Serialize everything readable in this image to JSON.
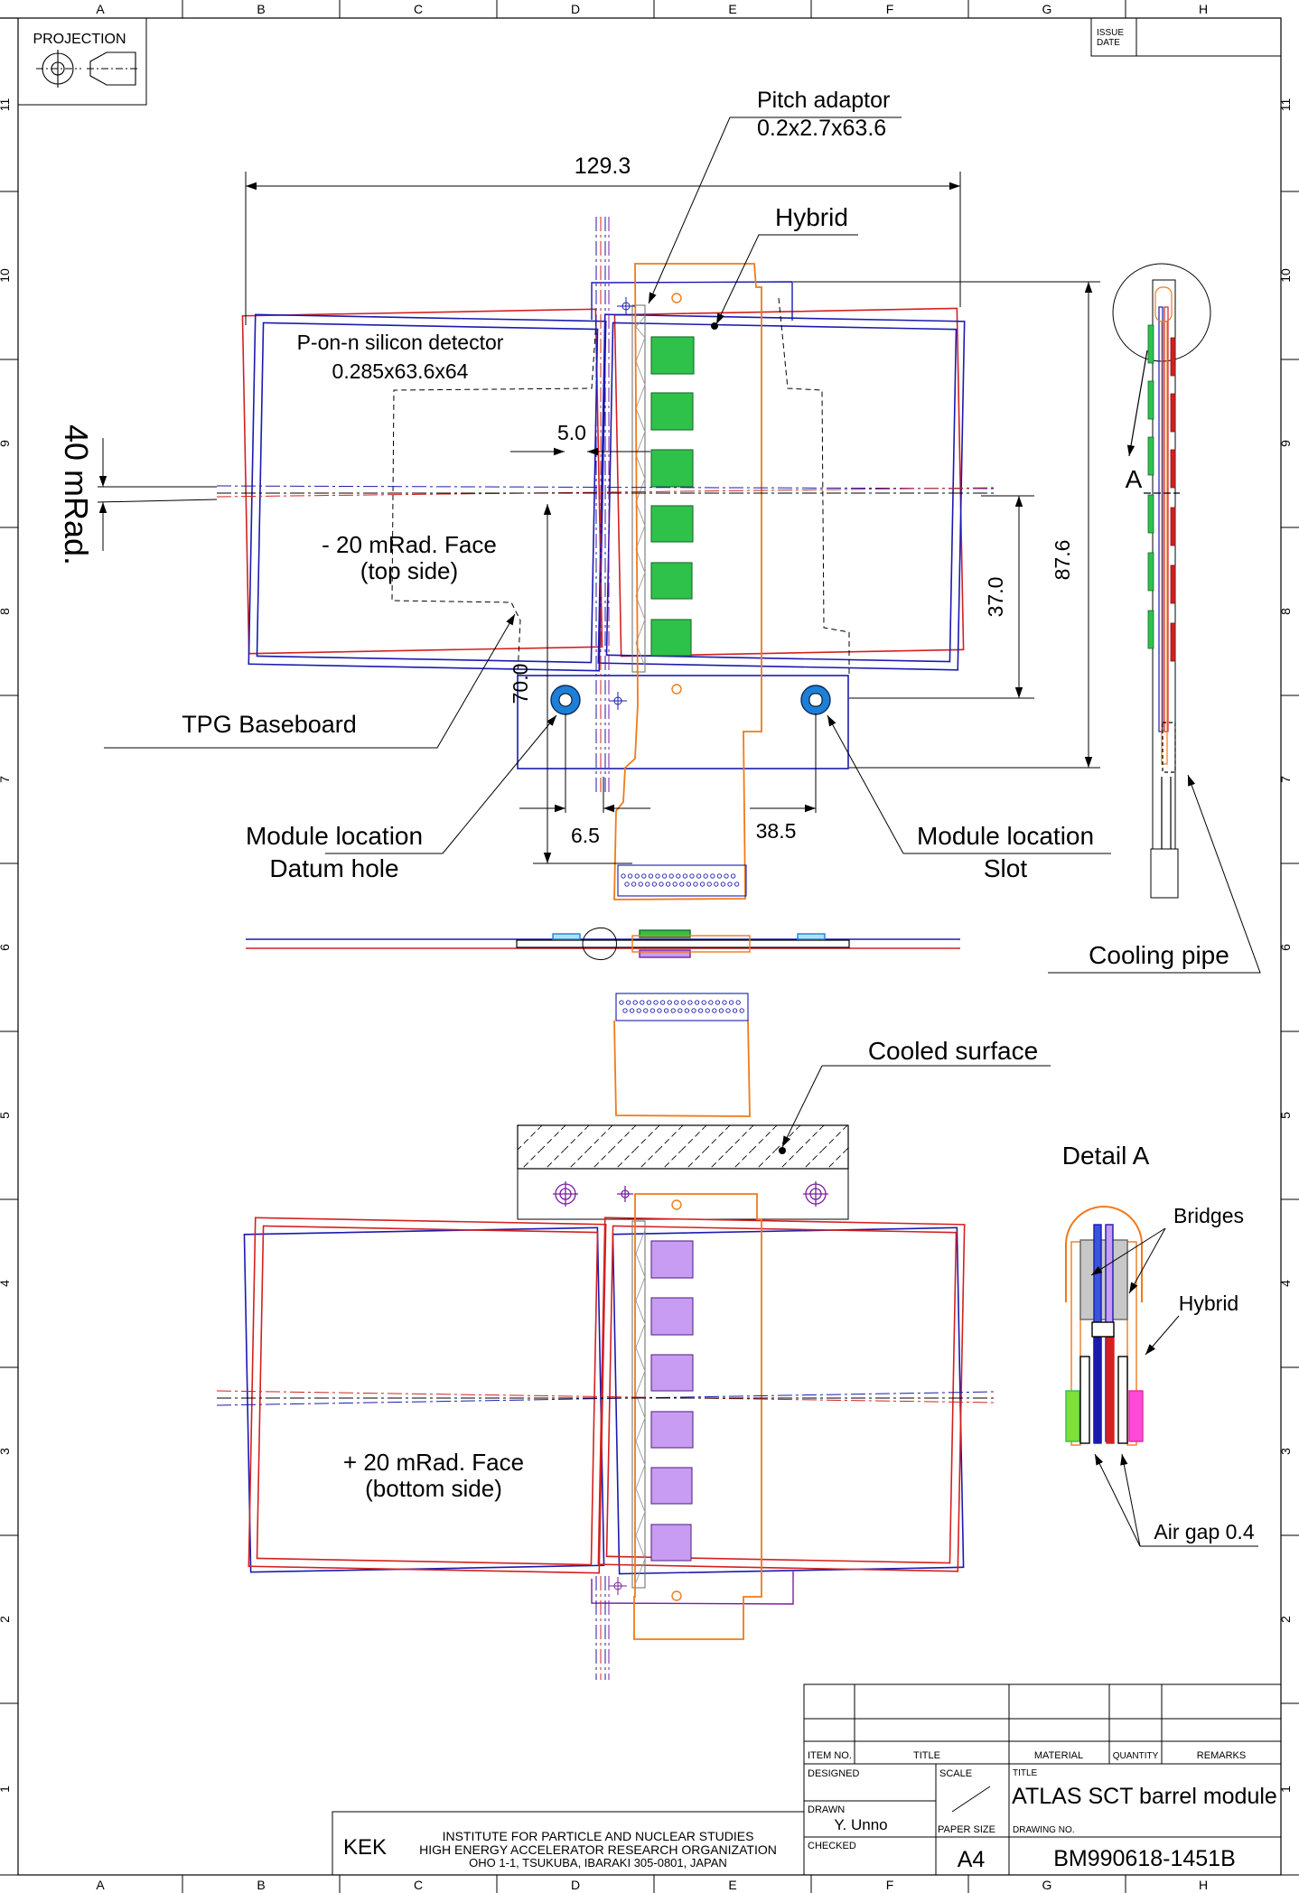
{
  "border": {
    "columns": [
      "A",
      "B",
      "C",
      "D",
      "E",
      "F",
      "G",
      "H"
    ],
    "rows": [
      "11",
      "10",
      "9",
      "8",
      "7",
      "6",
      "5",
      "4",
      "3",
      "2",
      "1"
    ]
  },
  "projection_label": "PROJECTION",
  "issue_label": "ISSUE",
  "date_label": "DATE",
  "labels": {
    "pitch_adaptor": "Pitch adaptor",
    "pitch_adaptor_dims": "0.2x2.7x63.6",
    "width_dim": "129.3",
    "hybrid": "Hybrid",
    "detector": "P-on-n silicon detector",
    "detector_dims": "0.285x63.6x64",
    "dim_5_0": "5.0",
    "angle": "40 mRad.",
    "top_face": "- 20 mRad. Face",
    "top_side": "(top side)",
    "dim_87_6": "87.6",
    "dim_37_0": "37.0",
    "dim_70_0": "70.0",
    "view_a": "A",
    "baseboard": "TPG Baseboard",
    "datum_1": "Module location",
    "datum_2": "Datum hole",
    "dim_6_5": "6.5",
    "dim_38_5": "38.5",
    "slot_1": "Module location",
    "slot_2": "Slot",
    "cooling_pipe": "Cooling pipe",
    "cooled_surface": "Cooled surface",
    "detail_a": "Detail A",
    "bridges": "Bridges",
    "hybrid_detail": "Hybrid",
    "bottom_face": "+ 20 mRad. Face",
    "bottom_side": "(bottom side)",
    "air_gap": "Air gap 0.4"
  },
  "title_block": {
    "item_no": "ITEM NO.",
    "title_col": "TITLE",
    "material": "MATERIAL",
    "quantity": "QUANTITY",
    "remarks": "REMARKS",
    "designed": "DESIGNED",
    "scale": "SCALE",
    "title_label": "TITLE",
    "title": "ATLAS SCT barrel module",
    "drawn": "DRAWN",
    "drawn_by": "Y. Unno",
    "paper_size_label": "PAPER SIZE",
    "paper_size": "A4",
    "drawing_no_label": "DRAWING NO.",
    "drawing_no": "BM990618-1451B",
    "checked": "CHECKED",
    "kek": "KEK",
    "inst_1": "INSTITUTE FOR PARTICLE AND NUCLEAR STUDIES",
    "inst_2": "HIGH ENERGY ACCELERATOR RESEARCH ORGANIZATION",
    "inst_3": "OHO 1-1, TSUKUBA, IBARAKI 305-0801, JAPAN"
  },
  "colors": {
    "detector_blue": "#1a1ab0",
    "detector_red": "#d42020",
    "hybrid_orange": "#f07a1a",
    "chip_green": "#2fc24a",
    "chip_purple": "#c79cf2",
    "hole_blue": "#1e7fd8",
    "purple_line": "#7a1ea0"
  }
}
